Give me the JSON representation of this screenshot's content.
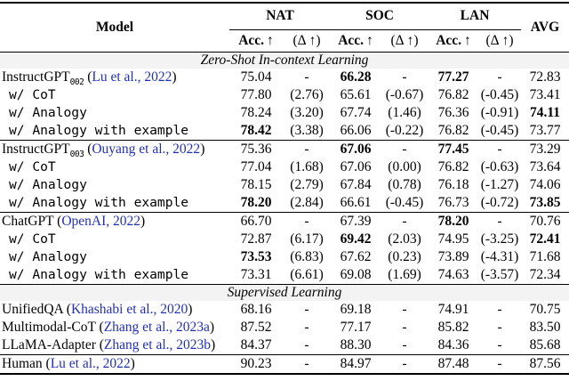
{
  "colors": {
    "citation": "#2230b4",
    "band": "#f3f3f3"
  },
  "header": {
    "model": "Model",
    "groups": [
      "NAT",
      "SOC",
      "LAN"
    ],
    "avg": "AVG",
    "acc_label": "Acc.",
    "up_arrow": "↑",
    "delta_label": "(Δ ↑)"
  },
  "sections": [
    {
      "title": "Zero-Shot In-context Learning",
      "rule_above": "none",
      "blocks": [
        [
          {
            "model": "InstructGPT",
            "sub": "002",
            "cite": "Lu et al., 2022",
            "mono": false,
            "cells": [
              "75.04",
              "-",
              "66.28",
              "-",
              "77.27",
              "-",
              "72.83"
            ],
            "bold": [
              2,
              4
            ]
          },
          {
            "model": "w/ CoT",
            "mono": true,
            "cells": [
              "77.80",
              "(2.76)",
              "65.61",
              "(-0.67)",
              "76.82",
              "(-0.45)",
              "73.41"
            ],
            "bold": []
          },
          {
            "model": "w/ Analogy",
            "mono": true,
            "cells": [
              "78.24",
              "(3.20)",
              "67.74",
              "(1.46)",
              "76.36",
              "(-0.91)",
              "74.11"
            ],
            "bold": [
              6
            ]
          },
          {
            "model": "w/ Analogy with example",
            "mono": true,
            "cells": [
              "78.42",
              "(3.38)",
              "66.06",
              "(-0.22)",
              "76.82",
              "(-0.45)",
              "73.77"
            ],
            "bold": [
              0
            ]
          }
        ],
        [
          {
            "model": "InstructGPT",
            "sub": "003",
            "cite": "Ouyang et al., 2022",
            "mono": false,
            "cells": [
              "75.36",
              "-",
              "67.06",
              "-",
              "77.45",
              "-",
              "73.29"
            ],
            "bold": [
              2,
              4
            ]
          },
          {
            "model": "w/ CoT",
            "mono": true,
            "cells": [
              "77.04",
              "(1.68)",
              "67.06",
              "(0.00)",
              "76.82",
              "(-0.63)",
              "73.64"
            ],
            "bold": []
          },
          {
            "model": "w/ Analogy",
            "mono": true,
            "cells": [
              "78.15",
              "(2.79)",
              "67.84",
              "(0.78)",
              "76.18",
              "(-1.27)",
              "74.06"
            ],
            "bold": []
          },
          {
            "model": "w/ Analogy with example",
            "mono": true,
            "cells": [
              "78.20",
              "(2.84)",
              "66.61",
              "(-0.45)",
              "76.73",
              "(-0.72)",
              "73.85"
            ],
            "bold": [
              0,
              6
            ]
          }
        ],
        [
          {
            "model": "ChatGPT",
            "cite": "OpenAI, 2022",
            "mono": false,
            "cells": [
              "66.70",
              "-",
              "67.39",
              "-",
              "78.20",
              "-",
              "70.76"
            ],
            "bold": [
              4
            ]
          },
          {
            "model": "w/ CoT",
            "mono": true,
            "cells": [
              "72.87",
              "(6.17)",
              "69.42",
              "(2.03)",
              "74.95",
              "(-3.25)",
              "72.41"
            ],
            "bold": [
              2,
              6
            ]
          },
          {
            "model": "w/ Analogy",
            "mono": true,
            "cells": [
              "73.53",
              "(6.83)",
              "67.62",
              "(0.23)",
              "73.89",
              "(-4.31)",
              "71.68"
            ],
            "bold": [
              0
            ]
          },
          {
            "model": "w/ Analogy with example",
            "mono": true,
            "cells": [
              "73.31",
              "(6.61)",
              "69.08",
              "(1.69)",
              "74.63",
              "(-3.57)",
              "72.34"
            ],
            "bold": []
          }
        ]
      ]
    },
    {
      "title": "Supervised Learning",
      "rule_above": "thick",
      "blocks": [
        [
          {
            "model": "UnifiedQA",
            "cite": "Khashabi et al., 2020",
            "mono": false,
            "cells": [
              "68.16",
              "-",
              "69.18",
              "-",
              "74.91",
              "-",
              "70.75"
            ],
            "bold": []
          },
          {
            "model": "Multimodal-CoT",
            "cite": "Zhang et al., 2023a",
            "mono": false,
            "cells": [
              "87.52",
              "-",
              "77.17",
              "-",
              "85.82",
              "-",
              "83.50"
            ],
            "bold": []
          },
          {
            "model": "LLaMA-Adapter",
            "cite": "Zhang et al., 2023b",
            "mono": false,
            "cells": [
              "84.37",
              "-",
              "88.30",
              "-",
              "84.36",
              "-",
              "85.68"
            ],
            "bold": []
          }
        ]
      ]
    },
    {
      "title": null,
      "rule_above": "thin",
      "blocks": [
        [
          {
            "model": "Human",
            "cite": "Lu et al., 2022",
            "mono": false,
            "cells": [
              "90.23",
              "-",
              "84.97",
              "-",
              "87.48",
              "-",
              "87.56"
            ],
            "bold": []
          }
        ]
      ]
    }
  ]
}
